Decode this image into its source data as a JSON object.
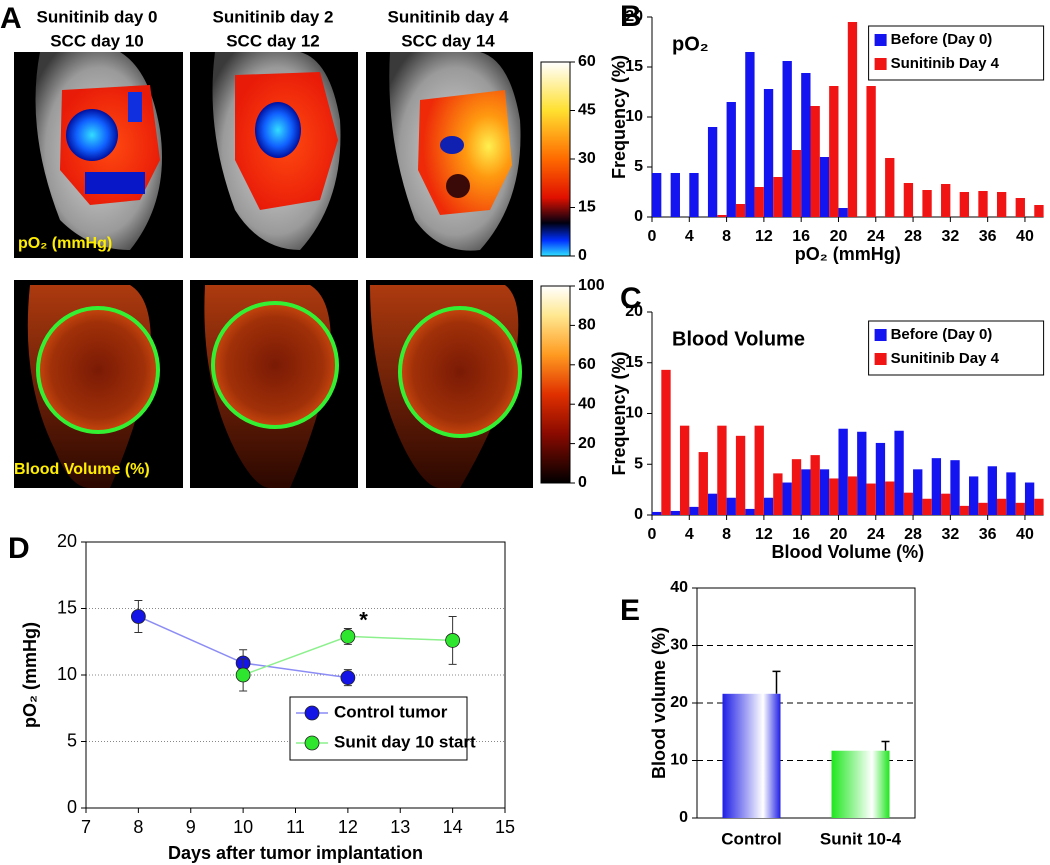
{
  "panel_labels": [
    "A",
    "B",
    "C",
    "D",
    "E"
  ],
  "panel_a": {
    "columns": [
      [
        "Sunitinib day 0",
        "SCC day 10"
      ],
      [
        "Sunitinib day 2",
        "SCC day 12"
      ],
      [
        "Sunitinib day 4",
        "SCC day 14"
      ]
    ],
    "po2_label": "pO₂ (mmHg)",
    "bv_label": "Blood Volume (%)",
    "colorbars": [
      {
        "ylim": [
          0,
          60
        ],
        "yticks": [
          0,
          15,
          30,
          45,
          60
        ]
      },
      {
        "ylim": [
          0,
          100
        ],
        "yticks": [
          0,
          20,
          40,
          60,
          80,
          100
        ]
      }
    ]
  },
  "chart_data": [
    {
      "type": "histogram",
      "title": "pO₂",
      "x_label": "pO₂ (mmHg)",
      "y_label": "Frequency (%)",
      "bins": [
        0,
        2,
        4,
        6,
        8,
        10,
        12,
        14,
        16,
        18,
        20,
        22,
        24,
        26,
        28,
        30,
        32,
        34,
        36,
        38,
        40,
        42
      ],
      "series": [
        {
          "name": "Before (Day 0)",
          "color": "#1414f0",
          "values": [
            4.4,
            4.4,
            4.4,
            9.0,
            11.5,
            16.5,
            12.8,
            15.6,
            14.4,
            6.0,
            0.9,
            0,
            0,
            0,
            0,
            0,
            0,
            0,
            0,
            0,
            0
          ]
        },
        {
          "name": "Sunitinib Day 4",
          "color": "#f01414",
          "values": [
            0,
            0,
            0,
            0.2,
            1.3,
            3.0,
            4.0,
            6.7,
            11.1,
            13.1,
            19.5,
            13.1,
            5.9,
            3.4,
            2.7,
            3.3,
            2.5,
            2.6,
            2.5,
            1.9,
            1.2
          ]
        }
      ],
      "xlim": [
        0,
        42
      ],
      "xticks": [
        0,
        4,
        8,
        12,
        16,
        20,
        24,
        28,
        32,
        36,
        40
      ],
      "ylim": [
        0,
        20
      ],
      "yticks": [
        0,
        5,
        10,
        15,
        20
      ],
      "legend": "upper right"
    },
    {
      "type": "histogram",
      "title": "Blood Volume",
      "x_label": "Blood Volume (%)",
      "y_label": "Frequency (%)",
      "bins": [
        0,
        2,
        4,
        6,
        8,
        10,
        12,
        14,
        16,
        18,
        20,
        22,
        24,
        26,
        28,
        30,
        32,
        34,
        36,
        38,
        40,
        42
      ],
      "series": [
        {
          "name": "Before (Day 0)",
          "color": "#1414f0",
          "values": [
            0.3,
            0.4,
            0.8,
            2.1,
            1.7,
            0.6,
            1.7,
            3.2,
            4.5,
            4.5,
            8.5,
            8.2,
            7.1,
            8.3,
            4.5,
            5.6,
            5.4,
            3.8,
            4.8,
            4.2,
            3.2
          ]
        },
        {
          "name": "Sunitinib Day 4",
          "color": "#f01414",
          "values": [
            14.3,
            8.8,
            6.2,
            8.8,
            7.8,
            8.8,
            4.1,
            5.5,
            5.9,
            3.6,
            3.8,
            3.1,
            3.3,
            2.2,
            1.6,
            2.1,
            0.9,
            1.2,
            1.6,
            1.2,
            1.6
          ]
        }
      ],
      "xlim": [
        0,
        42
      ],
      "xticks": [
        0,
        4,
        8,
        12,
        16,
        20,
        24,
        28,
        32,
        36,
        40
      ],
      "ylim": [
        0,
        20
      ],
      "yticks": [
        0,
        5,
        10,
        15,
        20
      ],
      "legend": "upper right"
    },
    {
      "type": "line",
      "x_label": "Days after tumor implantation",
      "y_label": "pO₂ (mmHg)",
      "series": [
        {
          "name": "Control tumor",
          "color": "#1414e6",
          "line_color": "#8c8cf5",
          "x": [
            8,
            10,
            12
          ],
          "values": [
            14.4,
            10.9,
            9.8
          ],
          "errors": [
            1.2,
            1.0,
            0.6
          ]
        },
        {
          "name": "Sunit day 10 start",
          "color": "#2ee62e",
          "line_color": "#8cf08c",
          "x": [
            10,
            12,
            14
          ],
          "values": [
            10.0,
            12.9,
            12.6
          ],
          "errors": [
            1.2,
            0.6,
            1.8
          ]
        }
      ],
      "annotations": [
        {
          "text": "*",
          "x": 12.3,
          "y": 14.0
        }
      ],
      "xlim": [
        7,
        15
      ],
      "xticks": [
        7,
        8,
        9,
        10,
        11,
        12,
        13,
        14,
        15
      ],
      "ylim": [
        0,
        20
      ],
      "yticks": [
        0,
        5,
        10,
        15,
        20
      ],
      "grid": "dotted",
      "legend": "lower right"
    },
    {
      "type": "bar",
      "y_label": "Blood volume (%)",
      "categories": [
        "Control",
        "Sunit 10-4"
      ],
      "values": [
        21.6,
        11.7
      ],
      "errors": [
        3.9,
        1.6
      ],
      "colors": [
        "#1e1ee6",
        "#1ee61e"
      ],
      "ylim": [
        0,
        40
      ],
      "yticks": [
        0,
        10,
        20,
        30,
        40
      ],
      "grid": "dashed"
    }
  ]
}
